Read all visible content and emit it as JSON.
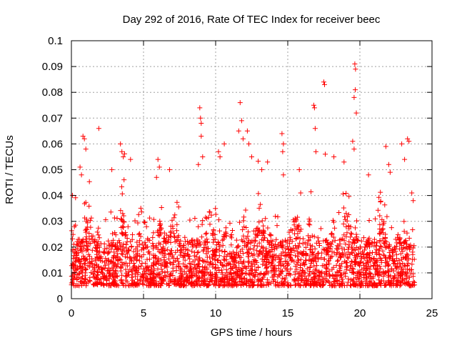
{
  "chart_data": {
    "type": "scatter",
    "title": "Day 292 of 2016, Rate Of TEC Index for receiver beec",
    "xlabel": "GPS time / hours",
    "ylabel": "ROTI / TECUs",
    "xlim": [
      0,
      25
    ],
    "ylim": [
      0,
      0.1
    ],
    "xticks": [
      0,
      5,
      10,
      15,
      20,
      25
    ],
    "xtick_labels": [
      "0",
      "5",
      "10",
      "15",
      "20",
      "25"
    ],
    "yticks": [
      0,
      0.01,
      0.02,
      0.03,
      0.04,
      0.05,
      0.06,
      0.07,
      0.08,
      0.09,
      0.1
    ],
    "ytick_labels": [
      "0",
      "0.01",
      "0.02",
      "0.03",
      "0.04",
      "0.05",
      "0.06",
      "0.07",
      "0.08",
      "0.09",
      "0.1"
    ],
    "grid": true,
    "marker": "+",
    "color": "#ff0000",
    "series": [
      {
        "name": "ROTI",
        "x_range": [
          0,
          23.8
        ],
        "typical_range": [
          0.005,
          0.02
        ],
        "outliers": [
          [
            0.8,
            0.063
          ],
          [
            0.9,
            0.062
          ],
          [
            1.0,
            0.058
          ],
          [
            1.9,
            0.066
          ],
          [
            0.6,
            0.051
          ],
          [
            0.7,
            0.048
          ],
          [
            3.4,
            0.06
          ],
          [
            3.5,
            0.057
          ],
          [
            3.6,
            0.055
          ],
          [
            2.8,
            0.05
          ],
          [
            4.1,
            0.054
          ],
          [
            6.0,
            0.054
          ],
          [
            6.1,
            0.051
          ],
          [
            6.8,
            0.05
          ],
          [
            5.9,
            0.047
          ],
          [
            8.9,
            0.074
          ],
          [
            8.95,
            0.07
          ],
          [
            9.0,
            0.068
          ],
          [
            9.1,
            0.055
          ],
          [
            8.8,
            0.052
          ],
          [
            9.0,
            0.063
          ],
          [
            10.2,
            0.057
          ],
          [
            10.3,
            0.055
          ],
          [
            10.6,
            0.06
          ],
          [
            11.7,
            0.076
          ],
          [
            11.8,
            0.069
          ],
          [
            11.6,
            0.065
          ],
          [
            11.9,
            0.062
          ],
          [
            12.2,
            0.065
          ],
          [
            12.3,
            0.06
          ],
          [
            12.5,
            0.055
          ],
          [
            13.2,
            0.05
          ],
          [
            13.6,
            0.053
          ],
          [
            14.6,
            0.064
          ],
          [
            14.7,
            0.06
          ],
          [
            14.65,
            0.057
          ],
          [
            14.7,
            0.048
          ],
          [
            15.8,
            0.05
          ],
          [
            16.8,
            0.075
          ],
          [
            16.85,
            0.074
          ],
          [
            16.9,
            0.066
          ],
          [
            16.95,
            0.057
          ],
          [
            17.5,
            0.084
          ],
          [
            17.55,
            0.083
          ],
          [
            17.6,
            0.056
          ],
          [
            18.2,
            0.055
          ],
          [
            18.9,
            0.053
          ],
          [
            19.5,
            0.061
          ],
          [
            19.6,
            0.058
          ],
          [
            19.65,
            0.091
          ],
          [
            19.7,
            0.089
          ],
          [
            19.68,
            0.081
          ],
          [
            19.6,
            0.078
          ],
          [
            19.75,
            0.072
          ],
          [
            20.6,
            0.048
          ],
          [
            21.8,
            0.059
          ],
          [
            22.0,
            0.052
          ],
          [
            22.1,
            0.049
          ],
          [
            22.9,
            0.06
          ],
          [
            23.3,
            0.062
          ],
          [
            23.4,
            0.061
          ],
          [
            23.1,
            0.054
          ],
          [
            23.6,
            0.041
          ],
          [
            23.7,
            0.038
          ]
        ]
      }
    ]
  }
}
